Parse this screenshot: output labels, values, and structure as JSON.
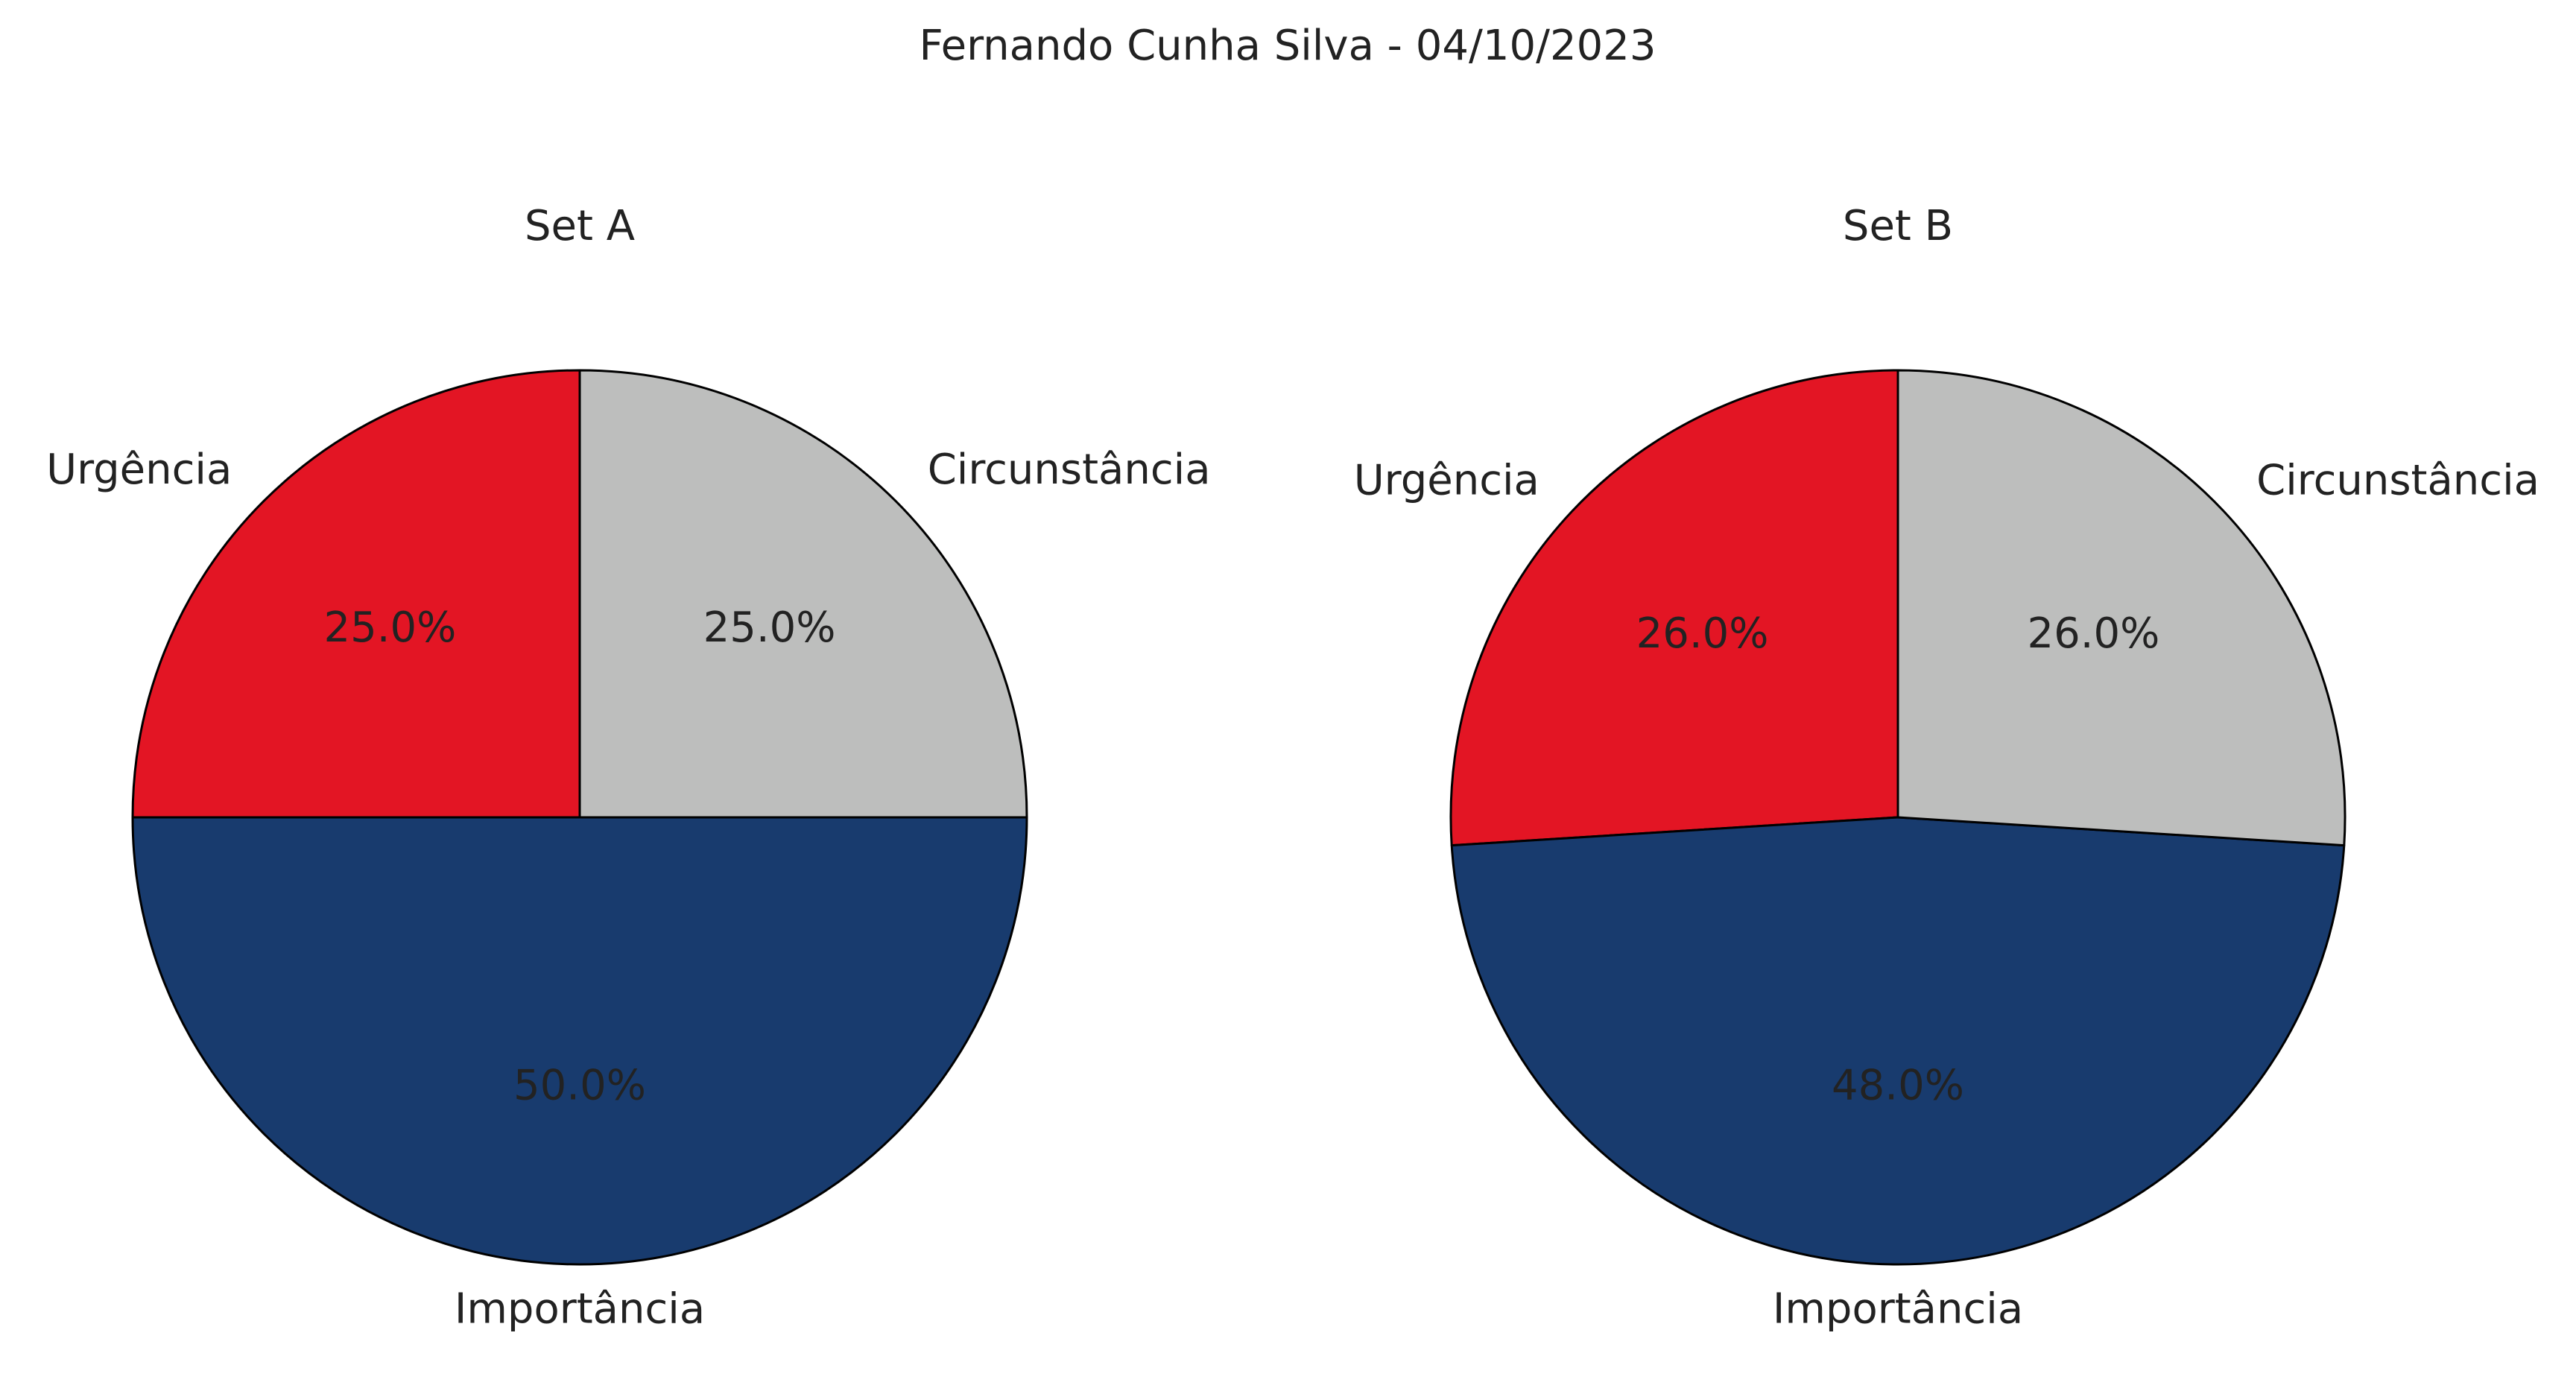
{
  "figure": {
    "title": "Fernando Cunha Silva - 04/10/2023"
  },
  "colors": {
    "Urgência": "#e31524",
    "Circunstância": "#bdbebd",
    "Importância": "#183b6e",
    "edge": "#000000"
  },
  "chart_data": [
    {
      "type": "pie",
      "title": "Set A",
      "categories": [
        "Urgência",
        "Importância",
        "Circunstância"
      ],
      "values": [
        25.0,
        50.0,
        25.0
      ],
      "percent_labels": [
        "25.0%",
        "50.0%",
        "25.0%"
      ],
      "start_angle_deg": 90,
      "direction": "counterclockwise",
      "legend": "none"
    },
    {
      "type": "pie",
      "title": "Set B",
      "categories": [
        "Urgência",
        "Importância",
        "Circunstância"
      ],
      "values": [
        26.0,
        48.0,
        26.0
      ],
      "percent_labels": [
        "26.0%",
        "48.0%",
        "26.0%"
      ],
      "start_angle_deg": 90,
      "direction": "counterclockwise",
      "legend": "none"
    }
  ]
}
